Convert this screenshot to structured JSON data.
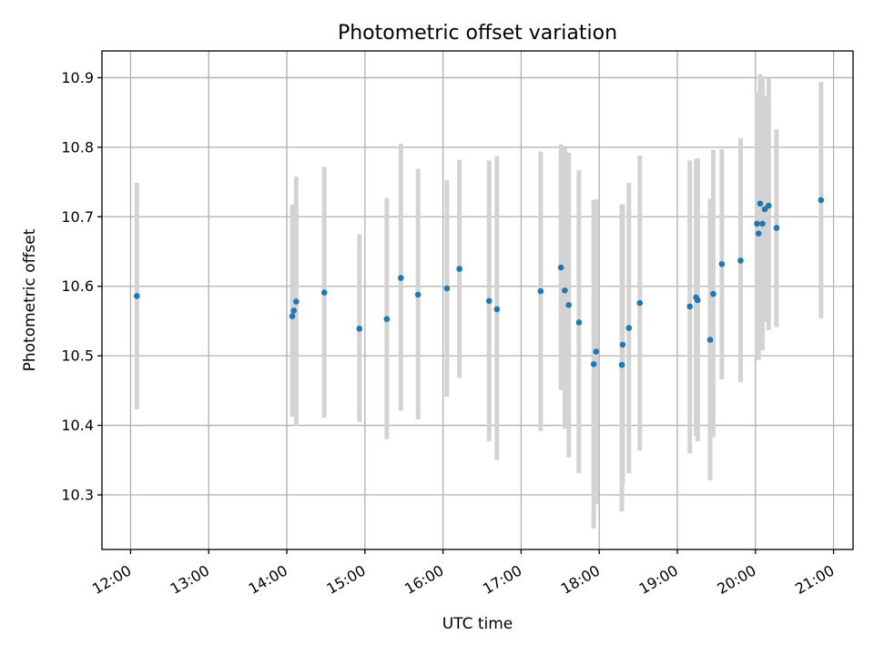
{
  "chart_data": {
    "type": "scatter",
    "title": "Photometric offset variation",
    "xlabel": "UTC time",
    "ylabel": "Photometric offset",
    "x_unit": "hours UTC",
    "xlim": [
      11.6333,
      21.25
    ],
    "ylim": [
      10.2215,
      10.9385
    ],
    "x_ticks": [
      {
        "value": 12,
        "label": "12:00"
      },
      {
        "value": 13,
        "label": "13:00"
      },
      {
        "value": 14,
        "label": "14:00"
      },
      {
        "value": 15,
        "label": "15:00"
      },
      {
        "value": 16,
        "label": "16:00"
      },
      {
        "value": 17,
        "label": "17:00"
      },
      {
        "value": 18,
        "label": "18:00"
      },
      {
        "value": 19,
        "label": "19:00"
      },
      {
        "value": 20,
        "label": "20:00"
      },
      {
        "value": 21,
        "label": "21:00"
      }
    ],
    "y_ticks": [
      {
        "value": 10.3,
        "label": "10.3"
      },
      {
        "value": 10.4,
        "label": "10.4"
      },
      {
        "value": 10.5,
        "label": "10.5"
      },
      {
        "value": 10.6,
        "label": "10.6"
      },
      {
        "value": 10.7,
        "label": "10.7"
      },
      {
        "value": 10.8,
        "label": "10.8"
      },
      {
        "value": 10.9,
        "label": "10.9"
      }
    ],
    "grid": true,
    "marker_color": "#1f77b4",
    "errorbar_color": "#d3d3d3",
    "points": [
      {
        "x": 12.08,
        "y": 10.586,
        "low": 10.423,
        "high": 10.749
      },
      {
        "x": 14.07,
        "y": 10.557,
        "low": 10.413,
        "high": 10.717
      },
      {
        "x": 14.09,
        "y": 10.565,
        "low": 10.412,
        "high": 10.718
      },
      {
        "x": 14.12,
        "y": 10.578,
        "low": 10.399,
        "high": 10.758
      },
      {
        "x": 14.48,
        "y": 10.591,
        "low": 10.411,
        "high": 10.772
      },
      {
        "x": 14.93,
        "y": 10.539,
        "low": 10.405,
        "high": 10.675
      },
      {
        "x": 15.28,
        "y": 10.553,
        "low": 10.38,
        "high": 10.727
      },
      {
        "x": 15.46,
        "y": 10.612,
        "low": 10.421,
        "high": 10.805
      },
      {
        "x": 15.68,
        "y": 10.588,
        "low": 10.409,
        "high": 10.769
      },
      {
        "x": 16.05,
        "y": 10.597,
        "low": 10.441,
        "high": 10.753
      },
      {
        "x": 16.21,
        "y": 10.625,
        "low": 10.468,
        "high": 10.782
      },
      {
        "x": 16.59,
        "y": 10.579,
        "low": 10.377,
        "high": 10.781
      },
      {
        "x": 16.69,
        "y": 10.567,
        "low": 10.35,
        "high": 10.787
      },
      {
        "x": 17.25,
        "y": 10.593,
        "low": 10.392,
        "high": 10.794
      },
      {
        "x": 17.51,
        "y": 10.627,
        "low": 10.451,
        "high": 10.804
      },
      {
        "x": 17.56,
        "y": 10.594,
        "low": 10.395,
        "high": 10.799
      },
      {
        "x": 17.61,
        "y": 10.573,
        "low": 10.354,
        "high": 10.792
      },
      {
        "x": 17.74,
        "y": 10.548,
        "low": 10.331,
        "high": 10.767
      },
      {
        "x": 17.93,
        "y": 10.488,
        "low": 10.252,
        "high": 10.724
      },
      {
        "x": 17.96,
        "y": 10.506,
        "low": 10.287,
        "high": 10.725
      },
      {
        "x": 18.29,
        "y": 10.487,
        "low": 10.276,
        "high": 10.718
      },
      {
        "x": 18.3,
        "y": 10.516,
        "low": 10.316,
        "high": 10.718
      },
      {
        "x": 18.38,
        "y": 10.54,
        "low": 10.331,
        "high": 10.749
      },
      {
        "x": 18.52,
        "y": 10.576,
        "low": 10.364,
        "high": 10.788
      },
      {
        "x": 19.16,
        "y": 10.571,
        "low": 10.36,
        "high": 10.781
      },
      {
        "x": 19.24,
        "y": 10.584,
        "low": 10.385,
        "high": 10.783
      },
      {
        "x": 19.26,
        "y": 10.58,
        "low": 10.377,
        "high": 10.784
      },
      {
        "x": 19.42,
        "y": 10.523,
        "low": 10.321,
        "high": 10.726
      },
      {
        "x": 19.46,
        "y": 10.589,
        "low": 10.383,
        "high": 10.796
      },
      {
        "x": 19.57,
        "y": 10.632,
        "low": 10.466,
        "high": 10.797
      },
      {
        "x": 19.81,
        "y": 10.637,
        "low": 10.462,
        "high": 10.813
      },
      {
        "x": 20.02,
        "y": 10.69,
        "low": 10.498,
        "high": 10.88
      },
      {
        "x": 20.04,
        "y": 10.676,
        "low": 10.494,
        "high": 10.858
      },
      {
        "x": 20.06,
        "y": 10.719,
        "low": 10.534,
        "high": 10.905
      },
      {
        "x": 20.09,
        "y": 10.69,
        "low": 10.508,
        "high": 10.902
      },
      {
        "x": 20.12,
        "y": 10.711,
        "low": 10.549,
        "high": 10.874
      },
      {
        "x": 20.17,
        "y": 10.716,
        "low": 10.537,
        "high": 10.899
      },
      {
        "x": 20.27,
        "y": 10.684,
        "low": 10.541,
        "high": 10.826
      },
      {
        "x": 20.84,
        "y": 10.724,
        "low": 10.554,
        "high": 10.894
      }
    ]
  }
}
